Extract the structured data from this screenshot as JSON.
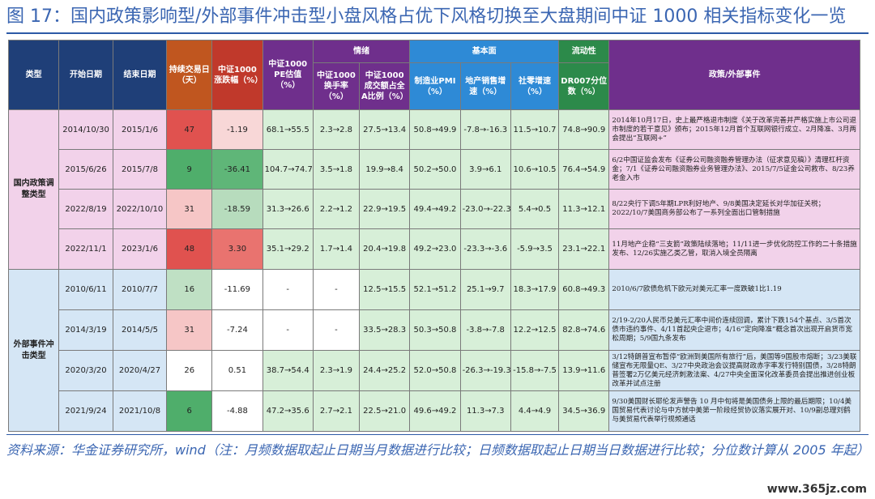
{
  "title": "图 17：国内政策影响型/外部事件冲击型小盘风格占优下风格切换至大盘期间中证 1000 相关指标变化一览",
  "group_headers": {
    "sentiment": "情绪",
    "fundamentals": "基本面",
    "liquidity": "流动性"
  },
  "headers": {
    "type": "类型",
    "start": "开始日期",
    "end": "结束日期",
    "days": "持续交易日（天）",
    "change": "中证1000涨跌幅（%）",
    "pe": "中证1000 PE估值（%）",
    "turnover": "中证1000换手率（%）",
    "share": "中证1000成交额占全A比例（%）",
    "pmi": "制造业PMI（%）",
    "sales": "地产销售增速（%）",
    "retail": "社零增速（%）",
    "dr007": "DR007分位数（%）",
    "events": "政策/外部事件"
  },
  "categories": {
    "domestic": "国内政策调整类型",
    "external": "外部事件冲击类型"
  },
  "rows": [
    {
      "start": "2014/10/30",
      "end": "2015/1/6",
      "days": "47",
      "change": "-1.19",
      "pe": "68.1→55.5",
      "turnover": "2.3→2.8",
      "share": "27.5→13.4",
      "pmi": "50.8→49.9",
      "sales": "-7.8→-16.3",
      "retail": "11.5→10.7",
      "dr007": "74.8→90.9",
      "events": "2014年10月17日，史上最严格退市制度《关于改革完善并严格实施上市公司退市制度的若干意见》颁布；2015年12月首个互联网银行成立、2月降准、3月两会提出“互联网+”",
      "days_color": "#e0524f",
      "change_color": "#f8d7d7"
    },
    {
      "start": "2015/6/26",
      "end": "2015/7/8",
      "days": "9",
      "change": "-36.41",
      "pe": "104.7→74.7",
      "turnover": "3.5→1.8",
      "share": "19.9→8.4",
      "pmi": "50.2→50.0",
      "sales": "3.9→6.1",
      "retail": "10.6→10.5",
      "dr007": "76.4→54.9",
      "events": "6/2中国证监会发布《证券公司融资融券管理办法（征求意见稿）》清理杠杆资金；7/1《证券公司融资融券业务管理办法》、2015/7/5证金公司救市、8/23养老金入市",
      "days_color": "#4fae6b",
      "change_color": "#5fb678"
    },
    {
      "start": "2022/8/19",
      "end": "2022/10/10",
      "days": "31",
      "change": "-18.59",
      "pe": "31.3→26.6",
      "turnover": "2.2→1.2",
      "share": "22.9→19.5",
      "pmi": "49.4→49.2",
      "sales": "-23.0→-22.3",
      "retail": "5.4→0.5",
      "dr007": "11.3→12.1",
      "events": "8/22央行下调5年期LPR利好地产、9/8美国决定延长对华加征关税；2022/10/7美国商务部公布了一系列全面出口管制措施",
      "days_color": "#f6c6c6",
      "change_color": "#b7dcbd"
    },
    {
      "start": "2022/11/1",
      "end": "2023/1/6",
      "days": "48",
      "change": "3.30",
      "pe": "35.1→29.2",
      "turnover": "1.7→1.4",
      "share": "20.4→19.8",
      "pmi": "49.2→23.0",
      "sales": "-23.3→-3.6",
      "retail": "-5.9→3.5",
      "dr007": "23.1→22.1",
      "events": "11月地产企稳“三支箭”政策陆续落地；11/11进一步优化防控工作的二十条措施发布、12/26实施乙类乙管，取消入境全员隔离",
      "days_color": "#e0524f",
      "change_color": "#e9736f"
    },
    {
      "start": "2010/6/11",
      "end": "2010/7/7",
      "days": "16",
      "change": "-11.69",
      "pe": "-",
      "turnover": "-",
      "share": "12.5→15.5",
      "pmi": "52.1→51.2",
      "sales": "25.1→9.7",
      "retail": "18.3→17.9",
      "dr007": "60.8→49.3",
      "events": "2010/6/7欧债危机下欧元对美元汇率一度跌破1比1.19",
      "days_color": "#bfe0c4",
      "change_color": "#ffffff"
    },
    {
      "start": "2014/3/19",
      "end": "2014/5/5",
      "days": "31",
      "change": "-7.24",
      "pe": "-",
      "turnover": "-",
      "share": "33.5→28.3",
      "pmi": "50.3→50.8",
      "sales": "-3.8→-7.8",
      "retail": "12.2→12.5",
      "dr007": "82.8→74.6",
      "events": "2/19-2/20人民币兑美元汇率中间价连续回调，累计下跌154个基点、3/5首次债市违约事件、4/11首起央企退市；4/16“定向降准”概念首次出现开启货币宽松周期；5/9国九条发布",
      "days_color": "#f6c6c6",
      "change_color": "#ffffff"
    },
    {
      "start": "2020/3/20",
      "end": "2020/4/27",
      "days": "26",
      "change": "0.51",
      "pe": "38.7→54.4",
      "turnover": "2.3→1.9",
      "share": "24.4→25.2",
      "pmi": "52.0→50.8",
      "sales": "-26.3→-19.3",
      "retail": "-15.8→-7.5",
      "dr007": "13.9→11.6",
      "events": "3/12特朗普宣布暂停“欧洲到美国所有旅行”后，美国等9国股市熔断；3/23美联储宣布无限量QE、3/27中央政治会议提高财政赤字率发行特别国债，3/28特朗普签署2万亿美元经济刺激法案、4/27中央全面深化改革委员会提出推进创业板改革并试点注册",
      "days_color": "#ffffff",
      "change_color": "#ffffff"
    },
    {
      "start": "2021/9/24",
      "end": "2021/10/8",
      "days": "6",
      "change": "-4.88",
      "pe": "47.2→35.6",
      "turnover": "2.7→2.1",
      "share": "22.5→21.0",
      "pmi": "49.6→49.2",
      "sales": "11.3→7.3",
      "retail": "4.4→4.9",
      "dr007": "34.5→36.9",
      "events": "9/30美国财长耶伦发声警告 10 月中旬将是美国债务上限的最后期限；10/4美国贸易代表讨论与中方就中美第一阶段经贸协议落实展开对、10/9副总理刘鹤与美贸易代表举行视频通话",
      "days_color": "#4fae6b",
      "change_color": "#ffffff"
    }
  ],
  "footer": "资料来源：华金证券研究所，wind（注：月频数据取起止日期当月数据进行比较；日频数据取起止日期当日数据进行比较；分位数计算从 2005 年起）",
  "watermark": "www.365jz.com"
}
